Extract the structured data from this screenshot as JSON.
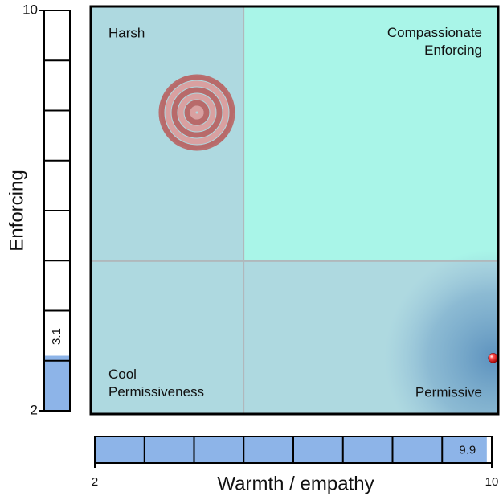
{
  "chart_data": {
    "type": "quadrant",
    "xlabel": "Warmth / empathy",
    "ylabel": "Enforcing",
    "xlim": [
      2,
      10
    ],
    "ylim": [
      2,
      10
    ],
    "xticks": [
      2,
      10
    ],
    "yticks": [
      2,
      10
    ],
    "quadrant_split": [
      5,
      5
    ],
    "quadrants": [
      {
        "label": "Harsh",
        "color": "#aed9e0"
      },
      {
        "label": "Compassionate Enforcing",
        "color": "#a9f5e8"
      },
      {
        "label": "Cool Permissiveness",
        "color": "#aed9e0"
      },
      {
        "label": "Permissive",
        "color": "#aed9e0"
      }
    ],
    "x": [
      9.9
    ],
    "values": [
      3.1
    ],
    "color": "#e02020",
    "bar_color": "#8db4e8"
  }
}
